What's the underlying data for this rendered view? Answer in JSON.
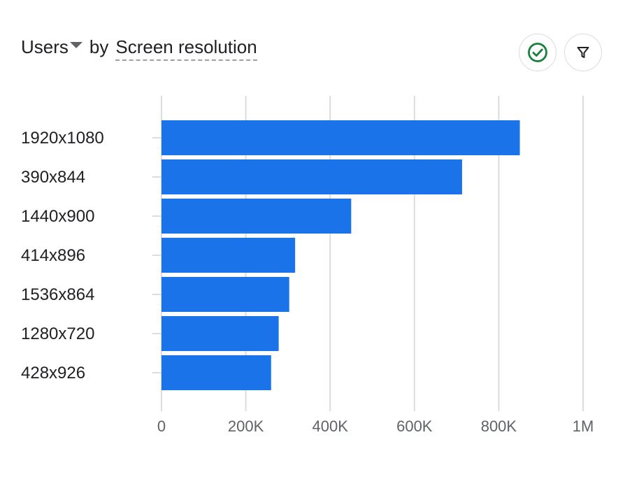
{
  "header": {
    "metric": "Users",
    "by": "by",
    "dimension": "Screen resolution"
  },
  "buttons": {
    "check_icon": "check-circle-icon",
    "filter_icon": "filter-icon"
  },
  "colors": {
    "bar": "#1a73e8",
    "check": "#188038",
    "grid": "#dadce0"
  },
  "chart_data": {
    "type": "bar",
    "orientation": "horizontal",
    "categories": [
      "1920x1080",
      "390x844",
      "1440x900",
      "414x896",
      "1536x864",
      "1280x720",
      "428x926"
    ],
    "values": [
      850000,
      713000,
      450000,
      317000,
      303000,
      278000,
      260000
    ],
    "xlim": [
      0,
      1000000
    ],
    "x_ticks": [
      0,
      200000,
      400000,
      600000,
      800000,
      1000000
    ],
    "x_tick_labels": [
      "0",
      "200K",
      "400K",
      "600K",
      "800K",
      "1M"
    ],
    "grid": true
  }
}
